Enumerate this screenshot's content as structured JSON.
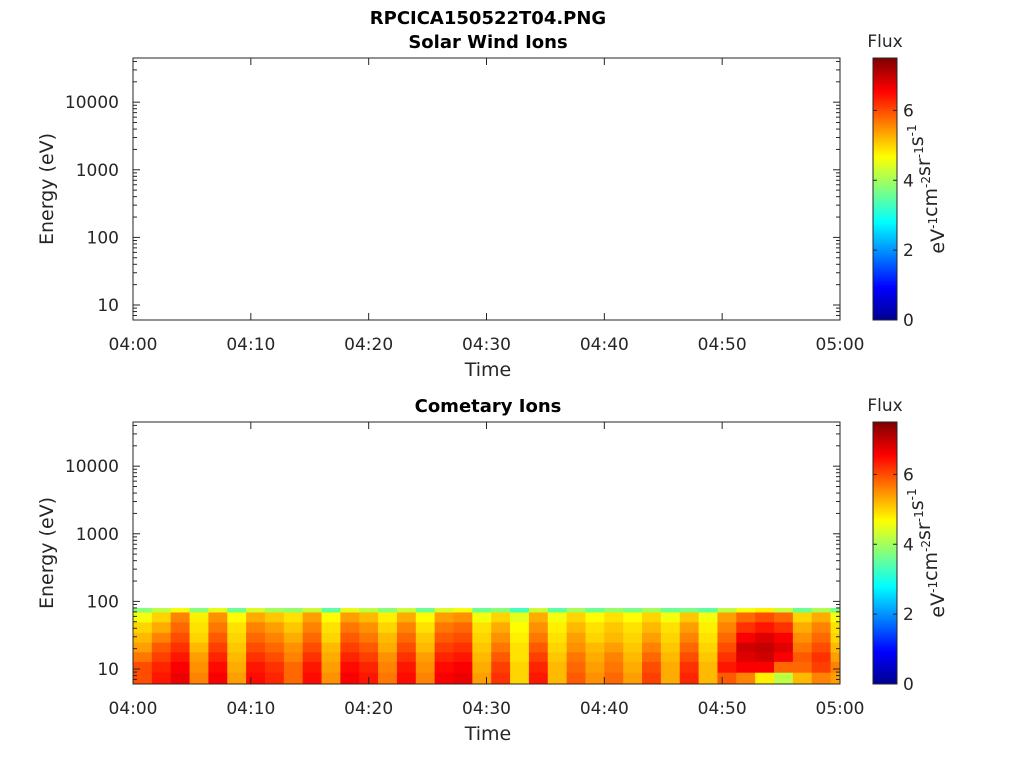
{
  "figure": {
    "title": "RPCICA150522T04.PNG",
    "colorbar_label": "Flux",
    "colorbar_unit": "eV-1cm-2sr-1s-1"
  },
  "colors": {
    "axis": "#262626",
    "colormap": [
      "#00008f",
      "#0000ff",
      "#0080ff",
      "#00ffff",
      "#80ff80",
      "#ffff00",
      "#ff8000",
      "#ff0000",
      "#800000"
    ]
  },
  "chart_data": [
    {
      "type": "heatmap",
      "title": "Solar Wind Ions",
      "xlabel": "Time",
      "ylabel": "Energy (eV)",
      "x_ticks": [
        "04:00",
        "04:10",
        "04:20",
        "04:30",
        "04:40",
        "04:50",
        "05:00"
      ],
      "xlim": [
        "04:00",
        "05:00"
      ],
      "y_scale": "log",
      "y_ticks": [
        10,
        100,
        1000,
        10000
      ],
      "y_tick_labels": [
        "10",
        "100",
        "1000",
        "10000"
      ],
      "ylim": [
        6,
        45000
      ],
      "colorbar": {
        "label": "Flux",
        "range": [
          0,
          7.5
        ],
        "ticks": [
          0,
          2,
          4,
          6
        ]
      },
      "energy_max": null,
      "columns": []
    },
    {
      "type": "heatmap",
      "title": "Cometary Ions",
      "xlabel": "Time",
      "ylabel": "Energy (eV)",
      "x_ticks": [
        "04:00",
        "04:10",
        "04:20",
        "04:30",
        "04:40",
        "04:50",
        "05:00"
      ],
      "xlim": [
        "04:00",
        "05:00"
      ],
      "y_scale": "log",
      "y_ticks": [
        10,
        100,
        1000,
        10000
      ],
      "y_tick_labels": [
        "10",
        "100",
        "1000",
        "10000"
      ],
      "ylim": [
        6,
        45000
      ],
      "colorbar": {
        "label": "Flux",
        "range": [
          0,
          7.5
        ],
        "ticks": [
          0,
          2,
          4,
          6
        ]
      },
      "energy_max": 80,
      "energy_bins": [
        6,
        9,
        13,
        18,
        25,
        35,
        50,
        70,
        80
      ],
      "columns": [
        {
          "t": 0.0,
          "flux": [
            6.0,
            6.0,
            5.7,
            5.4,
            5.2,
            5.0,
            4.6,
            3.8
          ]
        },
        {
          "t": 1.6,
          "flux": [
            6.4,
            6.3,
            6.1,
            5.9,
            5.6,
            5.3,
            5.0,
            4.2
          ]
        },
        {
          "t": 3.2,
          "flux": [
            6.7,
            6.6,
            6.4,
            6.2,
            6.0,
            5.8,
            5.6,
            4.6
          ]
        },
        {
          "t": 4.8,
          "flux": [
            5.6,
            5.5,
            5.4,
            5.2,
            5.0,
            4.9,
            4.8,
            3.8
          ]
        },
        {
          "t": 6.4,
          "flux": [
            6.6,
            6.5,
            6.3,
            6.1,
            5.9,
            5.7,
            5.5,
            4.5
          ]
        },
        {
          "t": 8.0,
          "flux": [
            5.4,
            5.3,
            5.2,
            5.1,
            5.0,
            4.9,
            4.7,
            3.6
          ]
        },
        {
          "t": 9.6,
          "flux": [
            6.5,
            6.4,
            6.2,
            6.0,
            5.8,
            5.6,
            5.3,
            4.4
          ]
        },
        {
          "t": 11.2,
          "flux": [
            6.3,
            6.2,
            6.0,
            5.8,
            5.6,
            5.4,
            5.1,
            4.0
          ]
        },
        {
          "t": 12.8,
          "flux": [
            5.8,
            5.8,
            5.6,
            5.5,
            5.3,
            5.1,
            4.9,
            3.9
          ]
        },
        {
          "t": 14.4,
          "flux": [
            6.5,
            6.4,
            6.2,
            6.0,
            5.8,
            5.6,
            5.4,
            4.3
          ]
        },
        {
          "t": 16.0,
          "flux": [
            5.5,
            5.4,
            5.3,
            5.2,
            5.0,
            4.9,
            4.7,
            3.5
          ]
        },
        {
          "t": 17.6,
          "flux": [
            6.6,
            6.5,
            6.3,
            6.1,
            5.9,
            5.7,
            5.4,
            4.5
          ]
        },
        {
          "t": 19.2,
          "flux": [
            6.4,
            6.3,
            6.1,
            5.9,
            5.7,
            5.5,
            5.2,
            4.2
          ]
        },
        {
          "t": 20.8,
          "flux": [
            5.7,
            5.6,
            5.5,
            5.3,
            5.2,
            5.0,
            4.8,
            3.8
          ]
        },
        {
          "t": 22.4,
          "flux": [
            6.5,
            6.4,
            6.2,
            6.0,
            5.8,
            5.6,
            5.3,
            4.3
          ]
        },
        {
          "t": 24.0,
          "flux": [
            5.6,
            5.5,
            5.4,
            5.2,
            5.1,
            4.9,
            4.7,
            3.6
          ]
        },
        {
          "t": 25.6,
          "flux": [
            6.6,
            6.5,
            6.3,
            6.1,
            5.9,
            5.7,
            5.4,
            4.4
          ]
        },
        {
          "t": 27.2,
          "flux": [
            6.7,
            6.6,
            6.4,
            6.2,
            6.0,
            5.8,
            5.5,
            4.6
          ]
        },
        {
          "t": 28.8,
          "flux": [
            5.4,
            5.3,
            5.2,
            5.1,
            5.0,
            4.9,
            4.6,
            3.6
          ]
        },
        {
          "t": 30.4,
          "flux": [
            6.2,
            6.1,
            5.9,
            5.7,
            5.5,
            5.3,
            5.0,
            3.8
          ]
        },
        {
          "t": 32.0,
          "flux": [
            5.0,
            5.0,
            4.9,
            4.9,
            4.8,
            4.7,
            4.5,
            3.3
          ]
        },
        {
          "t": 33.6,
          "flux": [
            6.4,
            6.3,
            6.1,
            5.9,
            5.7,
            5.5,
            5.3,
            4.3
          ]
        },
        {
          "t": 35.2,
          "flux": [
            5.2,
            5.2,
            5.1,
            5.0,
            4.9,
            4.8,
            4.6,
            3.5
          ]
        },
        {
          "t": 36.8,
          "flux": [
            5.9,
            5.8,
            5.7,
            5.5,
            5.4,
            5.2,
            5.0,
            4.0
          ]
        },
        {
          "t": 38.4,
          "flux": [
            5.5,
            5.4,
            5.3,
            5.2,
            5.0,
            4.9,
            4.7,
            3.6
          ]
        },
        {
          "t": 40.0,
          "flux": [
            5.8,
            5.7,
            5.6,
            5.4,
            5.2,
            5.1,
            4.9,
            3.9
          ]
        },
        {
          "t": 41.6,
          "flux": [
            5.4,
            5.3,
            5.2,
            5.1,
            5.0,
            4.9,
            4.7,
            3.7
          ]
        },
        {
          "t": 43.2,
          "flux": [
            6.1,
            6.0,
            5.8,
            5.6,
            5.4,
            5.2,
            5.0,
            4.0
          ]
        },
        {
          "t": 44.8,
          "flux": [
            5.3,
            5.3,
            5.2,
            5.1,
            5.0,
            4.9,
            4.6,
            3.6
          ]
        },
        {
          "t": 46.4,
          "flux": [
            6.3,
            6.2,
            6.0,
            5.8,
            5.6,
            5.4,
            5.1,
            3.7
          ]
        },
        {
          "t": 48.0,
          "flux": [
            5.2,
            5.2,
            5.1,
            5.0,
            4.9,
            4.8,
            4.6,
            3.5
          ]
        },
        {
          "t": 49.6,
          "flux": [
            5.9,
            6.4,
            6.2,
            6.0,
            5.8,
            5.6,
            5.4,
            4.2
          ]
        },
        {
          "t": 51.2,
          "flux": [
            5.6,
            6.6,
            6.8,
            6.9,
            6.6,
            6.2,
            5.8,
            4.6
          ]
        },
        {
          "t": 52.8,
          "flux": [
            4.8,
            6.6,
            6.9,
            7.0,
            6.8,
            6.4,
            6.0,
            4.8
          ]
        },
        {
          "t": 54.4,
          "flux": [
            4.2,
            5.8,
            6.6,
            6.8,
            6.6,
            6.2,
            5.8,
            4.3
          ]
        },
        {
          "t": 56.0,
          "flux": [
            5.2,
            5.8,
            5.9,
            5.7,
            5.5,
            5.3,
            5.0,
            3.6
          ]
        },
        {
          "t": 57.6,
          "flux": [
            5.6,
            6.1,
            6.2,
            6.0,
            5.8,
            5.6,
            5.3,
            4.1
          ]
        },
        {
          "t": 59.2,
          "flux": [
            5.4,
            5.6,
            5.4,
            5.2,
            5.0,
            4.9,
            4.6,
            3.7
          ]
        }
      ]
    }
  ]
}
